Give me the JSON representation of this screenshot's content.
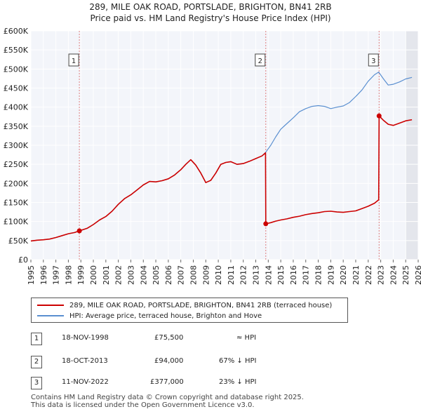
{
  "title": {
    "line1": "289, MILE OAK ROAD, PORTSLADE, BRIGHTON, BN41 2RB",
    "line2": "Price paid vs. HM Land Registry's House Price Index (HPI)"
  },
  "chart_data": {
    "type": "line",
    "title": "289, MILE OAK ROAD, PORTSLADE, BRIGHTON, BN41 2RB — Price paid vs. HM Land Registry's House Price Index (HPI)",
    "xlabel": "",
    "ylabel": "",
    "xlim": [
      1995,
      2026
    ],
    "ylim": [
      0,
      600000
    ],
    "grid": true,
    "x_ticks": [
      "1995",
      "1996",
      "1997",
      "1998",
      "1999",
      "2000",
      "2001",
      "2002",
      "2003",
      "2004",
      "2005",
      "2006",
      "2007",
      "2008",
      "2009",
      "2010",
      "2011",
      "2012",
      "2013",
      "2014",
      "2015",
      "2016",
      "2017",
      "2018",
      "2019",
      "2020",
      "2021",
      "2022",
      "2023",
      "2024",
      "2025",
      "2026"
    ],
    "y_ticks": [
      {
        "value": 0,
        "label": "£0"
      },
      {
        "value": 50000,
        "label": "£50K"
      },
      {
        "value": 100000,
        "label": "£100K"
      },
      {
        "value": 150000,
        "label": "£150K"
      },
      {
        "value": 200000,
        "label": "£200K"
      },
      {
        "value": 250000,
        "label": "£250K"
      },
      {
        "value": 300000,
        "label": "£300K"
      },
      {
        "value": 350000,
        "label": "£350K"
      },
      {
        "value": 400000,
        "label": "£400K"
      },
      {
        "value": 450000,
        "label": "£450K"
      },
      {
        "value": 500000,
        "label": "£500K"
      },
      {
        "value": 550000,
        "label": "£550K"
      },
      {
        "value": 600000,
        "label": "£600K"
      }
    ],
    "projection_from_year": 2025.0,
    "series": [
      {
        "name": "289, MILE OAK ROAD, PORTSLADE, BRIGHTON, BN41 2RB (terraced house)",
        "color": "#cc0000",
        "x": [
          1995.0,
          1995.5,
          1996.0,
          1996.5,
          1997.0,
          1997.5,
          1998.0,
          1998.5,
          1998.88,
          1999.5,
          2000.0,
          2000.5,
          2001.0,
          2001.5,
          2002.0,
          2002.5,
          2003.0,
          2003.5,
          2004.0,
          2004.5,
          2005.0,
          2005.5,
          2006.0,
          2006.5,
          2007.0,
          2007.4,
          2007.8,
          2008.2,
          2008.6,
          2009.0,
          2009.4,
          2009.8,
          2010.2,
          2010.6,
          2011.0,
          2011.5,
          2012.0,
          2012.5,
          2013.0,
          2013.5,
          2013.78,
          2013.8,
          2014.2,
          2014.6,
          2015.0,
          2015.5,
          2016.0,
          2016.5,
          2017.0,
          2017.5,
          2018.0,
          2018.5,
          2019.0,
          2019.5,
          2020.0,
          2020.5,
          2021.0,
          2021.5,
          2022.0,
          2022.5,
          2022.84,
          2022.87,
          2023.2,
          2023.6,
          2024.0,
          2024.5,
          2025.0,
          2025.5
        ],
        "y": [
          49000,
          51000,
          52000,
          54000,
          58000,
          63000,
          68000,
          71000,
          75500,
          82000,
          92000,
          104000,
          113000,
          127000,
          145000,
          160000,
          170000,
          183000,
          196000,
          205000,
          204000,
          207000,
          212000,
          222000,
          236000,
          250000,
          262000,
          248000,
          227000,
          202000,
          208000,
          227000,
          250000,
          255000,
          257000,
          250000,
          252000,
          258000,
          265000,
          272000,
          280000,
          94000,
          97000,
          101000,
          104000,
          107000,
          111000,
          114000,
          118000,
          121000,
          123000,
          126000,
          127000,
          125000,
          124000,
          126000,
          128000,
          134000,
          140000,
          148000,
          157000,
          377000,
          366000,
          355000,
          352000,
          358000,
          364000,
          367000
        ]
      },
      {
        "name": "HPI: Average price, terraced house, Brighton and Hove",
        "color": "#5a8fd0",
        "x": [
          1995.0,
          1995.5,
          1996.0,
          1996.5,
          1997.0,
          1997.5,
          1998.0,
          1998.5,
          1998.88,
          1999.5,
          2000.0,
          2000.5,
          2001.0,
          2001.5,
          2002.0,
          2002.5,
          2003.0,
          2003.5,
          2004.0,
          2004.5,
          2005.0,
          2005.5,
          2006.0,
          2006.5,
          2007.0,
          2007.4,
          2007.8,
          2008.2,
          2008.6,
          2009.0,
          2009.4,
          2009.8,
          2010.2,
          2010.6,
          2011.0,
          2011.5,
          2012.0,
          2012.5,
          2013.0,
          2013.5,
          2013.78,
          2014.2,
          2014.6,
          2015.0,
          2015.5,
          2016.0,
          2016.5,
          2017.0,
          2017.5,
          2018.0,
          2018.5,
          2019.0,
          2019.5,
          2020.0,
          2020.5,
          2021.0,
          2021.5,
          2022.0,
          2022.5,
          2022.84,
          2023.2,
          2023.6,
          2024.0,
          2024.5,
          2025.0,
          2025.5
        ],
        "y": [
          49000,
          51000,
          52000,
          54000,
          58000,
          63000,
          68000,
          71000,
          75500,
          82000,
          92000,
          104000,
          113000,
          127000,
          145000,
          160000,
          170000,
          183000,
          196000,
          205000,
          204000,
          207000,
          212000,
          222000,
          236000,
          250000,
          262000,
          248000,
          227000,
          202000,
          208000,
          227000,
          250000,
          255000,
          257000,
          250000,
          252000,
          258000,
          265000,
          272000,
          281000,
          300000,
          322000,
          342000,
          357000,
          372000,
          388000,
          396000,
          402000,
          404000,
          402000,
          396000,
          400000,
          403000,
          412000,
          428000,
          445000,
          468000,
          485000,
          492000,
          475000,
          458000,
          460000,
          466000,
          474000,
          478000
        ]
      }
    ],
    "sales": [
      {
        "label": "1",
        "year": 1998.88,
        "price": 75500
      },
      {
        "label": "2",
        "year": 2013.8,
        "price": 94000
      },
      {
        "label": "3",
        "year": 2022.87,
        "price": 377000
      }
    ],
    "annotations": [
      {
        "label": "1",
        "year": 1998.88
      },
      {
        "label": "2",
        "year": 2013.8
      },
      {
        "label": "3",
        "year": 2022.87
      }
    ]
  },
  "legend": {
    "items": [
      {
        "label": "289, MILE OAK ROAD, PORTSLADE, BRIGHTON, BN41 2RB (terraced house)",
        "color": "#cc0000"
      },
      {
        "label": "HPI: Average price, terraced house, Brighton and Hove",
        "color": "#5a8fd0"
      }
    ]
  },
  "table": {
    "rows": [
      {
        "num": "1",
        "date": "18-NOV-1998",
        "price": "£75,500",
        "hpi": "≈ HPI"
      },
      {
        "num": "2",
        "date": "18-OCT-2013",
        "price": "£94,000",
        "hpi": "67% ↓ HPI"
      },
      {
        "num": "3",
        "date": "11-NOV-2022",
        "price": "£377,000",
        "hpi": "23% ↓ HPI"
      }
    ]
  },
  "footer": {
    "line1": "Contains HM Land Registry data © Crown copyright and database right 2025.",
    "line2": "This data is licensed under the Open Government Licence v3.0."
  }
}
